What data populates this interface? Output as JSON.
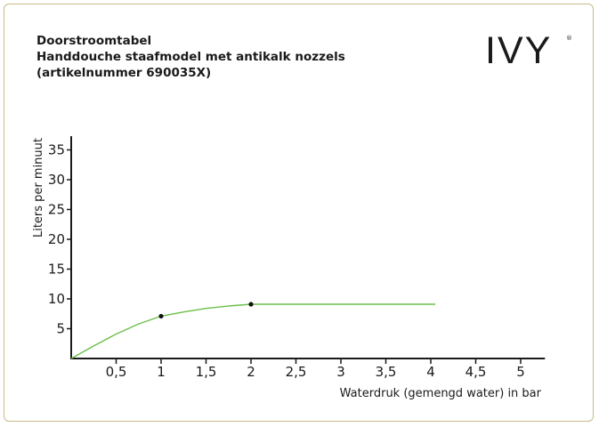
{
  "header": {
    "line1": "Doorstroomtabel",
    "line2": "Handdouche staafmodel met antikalk nozzels",
    "line3": "(artikelnummer 690035X)"
  },
  "logo": {
    "text": "IVY",
    "mark": "®"
  },
  "chart_data": {
    "type": "line",
    "xlabel": "Waterdruk (gemengd water) in bar",
    "ylabel": "Liters per minuut",
    "xlim": [
      0,
      5.25
    ],
    "ylim": [
      0,
      37
    ],
    "x_ticks": [
      {
        "value": 0.5,
        "label": "0,5"
      },
      {
        "value": 1,
        "label": "1"
      },
      {
        "value": 1.5,
        "label": "1,5"
      },
      {
        "value": 2,
        "label": "2"
      },
      {
        "value": 2.5,
        "label": "2,5"
      },
      {
        "value": 3,
        "label": "3"
      },
      {
        "value": 3.5,
        "label": "3,5"
      },
      {
        "value": 4,
        "label": "4"
      },
      {
        "value": 4.5,
        "label": "4,5"
      },
      {
        "value": 5,
        "label": "5"
      }
    ],
    "y_ticks": [
      {
        "value": 5,
        "label": "5"
      },
      {
        "value": 10,
        "label": "10"
      },
      {
        "value": 15,
        "label": "15"
      },
      {
        "value": 20,
        "label": "20"
      },
      {
        "value": 25,
        "label": "25"
      },
      {
        "value": 30,
        "label": "30"
      },
      {
        "value": 35,
        "label": "35"
      }
    ],
    "grid": false,
    "legend": "none",
    "series": [
      {
        "color": "#6cbf4a",
        "x": [
          0,
          0.25,
          0.5,
          0.75,
          1,
          1.25,
          1.5,
          1.75,
          2,
          2.5,
          3,
          3.5,
          4.05
        ],
        "y": [
          0,
          2.1,
          4.1,
          5.8,
          7.1,
          7.8,
          8.4,
          8.8,
          9.1,
          9.1,
          9.1,
          9.1,
          9.1
        ],
        "markers": [
          {
            "x": 1,
            "y": 7.1
          },
          {
            "x": 2,
            "y": 9.1
          }
        ]
      }
    ]
  }
}
